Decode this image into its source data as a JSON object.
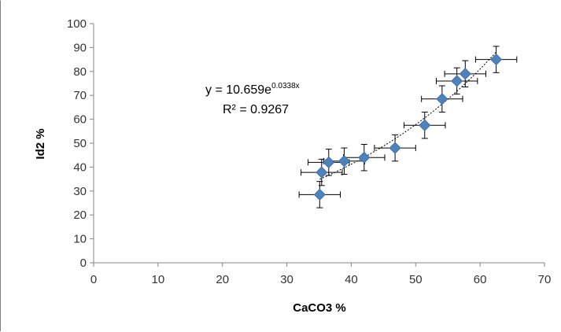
{
  "chart_data": {
    "type": "scatter",
    "title": "",
    "xlabel": "CaCO3 %",
    "ylabel": "Id2 %",
    "xlim": [
      0,
      70
    ],
    "ylim": [
      0,
      100
    ],
    "xticks": [
      0,
      10,
      20,
      30,
      40,
      50,
      60,
      70
    ],
    "yticks": [
      0,
      10,
      20,
      30,
      40,
      50,
      60,
      70,
      80,
      90,
      100
    ],
    "grid": false,
    "legend": "none",
    "marker": "diamond",
    "marker_color": "#4f81bd",
    "errorbar_color": "#000000",
    "series": [
      {
        "points": [
          {
            "x": 35.1,
            "y": 28.5,
            "xerr": 3.2,
            "yerr": 5.5
          },
          {
            "x": 35.4,
            "y": 37.8,
            "xerr": 3.2,
            "yerr": 5.5
          },
          {
            "x": 36.5,
            "y": 42.0,
            "xerr": 3.2,
            "yerr": 5.5
          },
          {
            "x": 38.9,
            "y": 42.5,
            "xerr": 3.2,
            "yerr": 5.5
          },
          {
            "x": 42.0,
            "y": 44.0,
            "xerr": 3.2,
            "yerr": 5.5
          },
          {
            "x": 46.8,
            "y": 48.0,
            "xerr": 3.2,
            "yerr": 5.5
          },
          {
            "x": 51.4,
            "y": 57.5,
            "xerr": 3.2,
            "yerr": 5.5
          },
          {
            "x": 54.1,
            "y": 68.5,
            "xerr": 3.2,
            "yerr": 5.5
          },
          {
            "x": 56.4,
            "y": 76.0,
            "xerr": 3.2,
            "yerr": 5.5
          },
          {
            "x": 57.7,
            "y": 79.0,
            "xerr": 3.2,
            "yerr": 5.5
          },
          {
            "x": 62.5,
            "y": 85.0,
            "xerr": 3.2,
            "yerr": 5.5
          }
        ]
      }
    ],
    "trendline": {
      "type": "exponential",
      "a": 10.659,
      "b": 0.0338,
      "x_range": [
        35.1,
        62.5
      ],
      "style": "dotted",
      "color": "#000000",
      "equation_main": "y = 10.659e",
      "equation_exp": "0.0338x",
      "r2_text": "R² = 0.9267"
    }
  }
}
